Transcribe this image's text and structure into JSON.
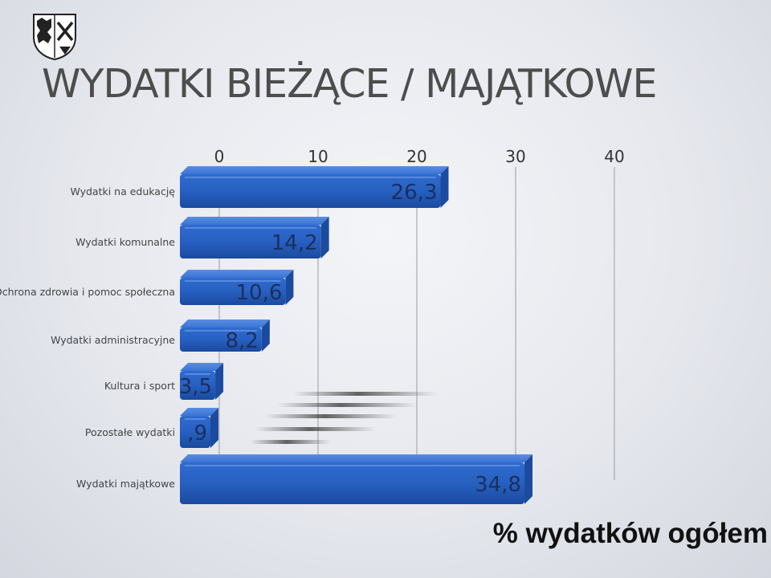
{
  "slide": {
    "title": "WYDATKI BIEŻĄCE / MAJĄTKOWE",
    "footer": "% wydatków ogółem"
  },
  "chart_data": {
    "type": "bar",
    "orientation": "horizontal",
    "categories": [
      "Wydatki na edukację",
      "Wydatki komunalne",
      "Ochrona zdrowia i pomoc społeczna",
      "Wydatki administracyjne",
      "Kultura i sport",
      "Pozostałe wydatki",
      "Wydatki majątkowe"
    ],
    "values": [
      26.3,
      14.2,
      10.6,
      8.2,
      3.5,
      0.9,
      34.8
    ],
    "value_labels": [
      "26,3",
      "14,2",
      "10,6",
      "8,2",
      "3,5",
      ",9",
      "34,8"
    ],
    "xticks": [
      0,
      10,
      20,
      30,
      40
    ],
    "xlim": [
      0,
      40
    ],
    "grid": true,
    "bar_color": "#2a62c0"
  }
}
